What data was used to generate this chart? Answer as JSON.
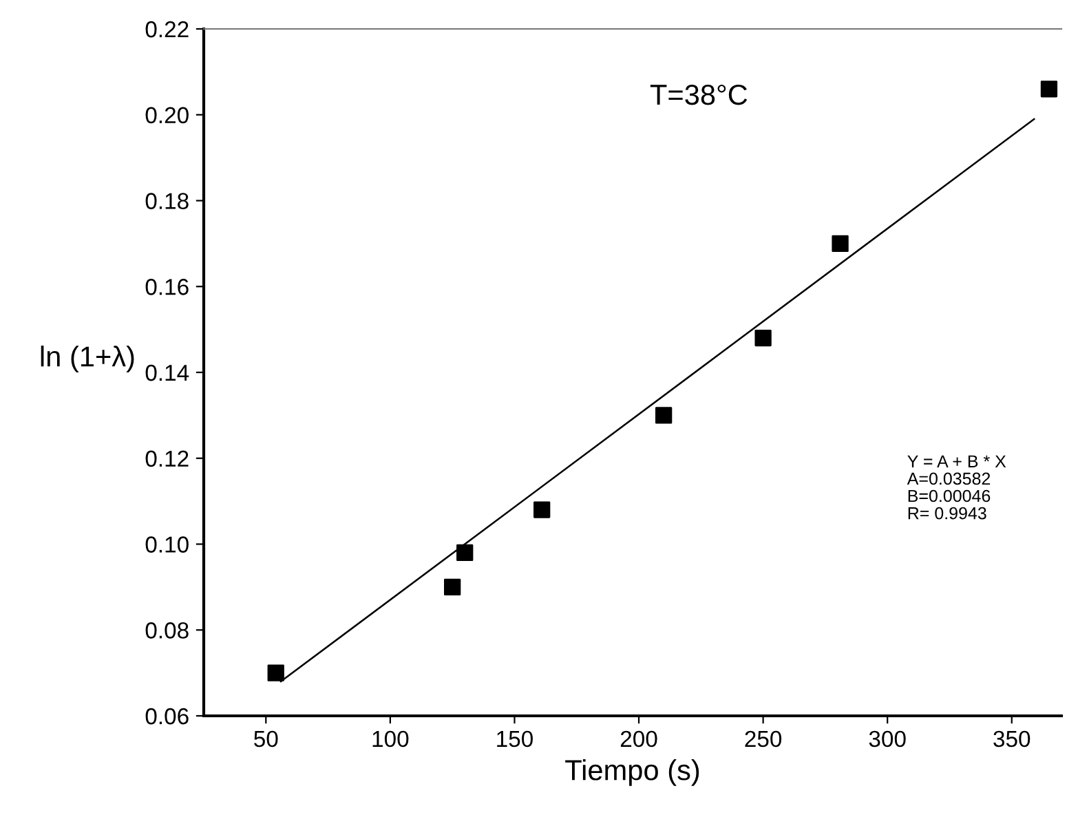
{
  "chart_data": {
    "type": "scatter",
    "xlabel": "Tiempo (s)",
    "ylabel": "ln (1+λ)",
    "annotations": [
      "T=38°C",
      "Y = A + B * X\nA=0.03582\nB=0.00046\nR= 0.9943"
    ],
    "series": [
      {
        "color": "#000000",
        "marker": "square",
        "x": [
          54,
          125,
          130,
          161,
          210,
          250,
          281,
          365
        ],
        "values": [
          0.07,
          0.09,
          0.098,
          0.108,
          0.13,
          0.148,
          0.17,
          0.206
        ]
      },
      {
        "type": "line",
        "color": "#000000",
        "marker": "none",
        "line_style": "solid",
        "x": [
          56,
          359
        ],
        "values": [
          0.068,
          0.199
        ]
      }
    ],
    "xlim": [
      25,
      370
    ],
    "ylim": [
      0.06,
      0.22
    ],
    "xticks": [
      50,
      100,
      150,
      200,
      250,
      300,
      350
    ],
    "yticks": [
      {
        "value": 0.06,
        "label": "0.06"
      },
      {
        "value": 0.08,
        "label": "0.08"
      },
      {
        "value": 0.1,
        "label": "0.10"
      },
      {
        "value": 0.12,
        "label": "0.12"
      },
      {
        "value": 0.14,
        "label": "0.14"
      },
      {
        "value": 0.16,
        "label": "0.16"
      },
      {
        "value": 0.18,
        "label": "0.18"
      },
      {
        "value": 0.2,
        "label": "0.20"
      },
      {
        "value": 0.22,
        "label": "0.22"
      }
    ],
    "grid": false
  }
}
